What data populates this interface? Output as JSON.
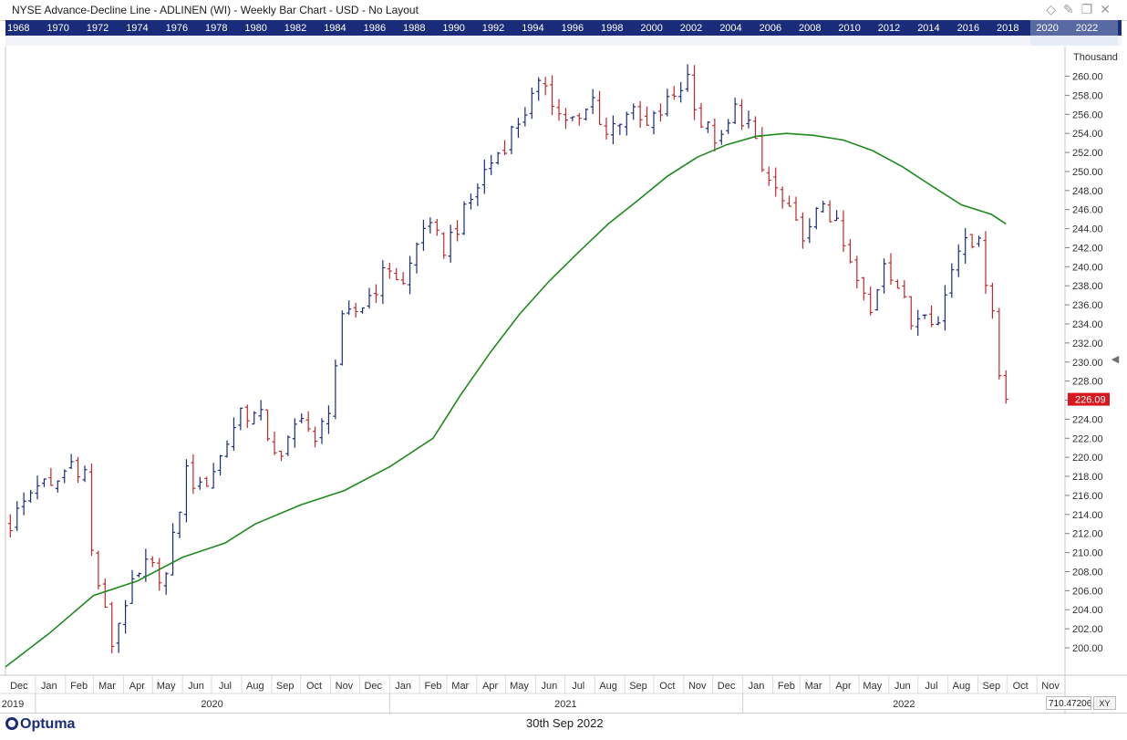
{
  "header": {
    "title": "NYSE  Advance-Decline Line - ADLINEN (WI) - Weekly Bar Chart - USD - No Layout",
    "icons": [
      "pencil-icon",
      "diamond-icon",
      "pin-icon",
      "restore-icon",
      "close-icon"
    ]
  },
  "overview_years": [
    "1968",
    "1970",
    "1972",
    "1974",
    "1976",
    "1978",
    "1980",
    "1982",
    "1984",
    "1986",
    "1988",
    "1990",
    "1992",
    "1994",
    "1996",
    "1998",
    "2000",
    "2002",
    "2004",
    "2006",
    "2008",
    "2010",
    "2012",
    "2014",
    "2016",
    "2018",
    "2020",
    "2022"
  ],
  "footer": {
    "brand": "Optuma",
    "date": "30th Sep 2022",
    "zoom_value": "710.47206",
    "xy_label": "XY"
  },
  "colors": {
    "up": "#1a2b7a",
    "down": "#c0282d",
    "ma": "#1e8a1e",
    "last_price_bg": "#d7191f"
  },
  "chart_data": {
    "type": "bar",
    "title": "NYSE  Advance-Decline Line - ADLINEN (WI) - Weekly Bar Chart - USD - No Layout",
    "y_unit": "Thousand",
    "ylim": [
      197.5,
      261.0
    ],
    "y_ticks": [
      "200.00",
      "202.00",
      "204.00",
      "206.00",
      "208.00",
      "210.00",
      "212.00",
      "214.00",
      "216.00",
      "218.00",
      "220.00",
      "222.00",
      "224.00",
      "226.00",
      "228.00",
      "230.00",
      "232.00",
      "234.00",
      "236.00",
      "238.00",
      "240.00",
      "242.00",
      "244.00",
      "246.00",
      "248.00",
      "250.00",
      "252.00",
      "254.00",
      "256.00",
      "258.00",
      "260.00"
    ],
    "last_price": "226.09",
    "month_labels": [
      "Dec",
      "Jan",
      "Feb",
      "Mar",
      "Apr",
      "May",
      "Jun",
      "Jul",
      "Aug",
      "Sep",
      "Oct",
      "Nov",
      "Dec",
      "Jan",
      "Feb",
      "Mar",
      "Apr",
      "May",
      "Jun",
      "Jul",
      "Aug",
      "Sep",
      "Oct",
      "Nov",
      "Dec",
      "Jan",
      "Feb",
      "Mar",
      "Apr",
      "May",
      "Jun",
      "Jul",
      "Aug",
      "Sep",
      "Oct",
      "Nov"
    ],
    "year_labels": [
      "2019",
      "2020",
      "2021",
      "2022"
    ],
    "x_start": "2019-12-01",
    "x_end": "2022-11-30",
    "anchors": [
      [
        "2019-12-06",
        213.0
      ],
      [
        "2020-01-03",
        217.5
      ],
      [
        "2020-01-17",
        216.5
      ],
      [
        "2020-02-07",
        219.5
      ],
      [
        "2020-02-21",
        218.5
      ],
      [
        "2020-02-28",
        210.0
      ],
      [
        "2020-03-13",
        203.5
      ],
      [
        "2020-03-20",
        200.5
      ],
      [
        "2020-04-03",
        205.0
      ],
      [
        "2020-04-24",
        208.5
      ],
      [
        "2020-05-15",
        207.5
      ],
      [
        "2020-06-05",
        218.5
      ],
      [
        "2020-06-19",
        216.5
      ],
      [
        "2020-07-10",
        220.0
      ],
      [
        "2020-07-31",
        225.0
      ],
      [
        "2020-08-21",
        224.0
      ],
      [
        "2020-09-11",
        219.5
      ],
      [
        "2020-10-02",
        225.0
      ],
      [
        "2020-10-16",
        221.0
      ],
      [
        "2020-10-30",
        225.5
      ],
      [
        "2020-11-13",
        234.0
      ],
      [
        "2020-12-04",
        236.0
      ],
      [
        "2021-01-01",
        240.0
      ],
      [
        "2021-01-15",
        238.0
      ],
      [
        "2021-02-05",
        244.5
      ],
      [
        "2021-02-26",
        242.0
      ],
      [
        "2021-03-19",
        245.5
      ],
      [
        "2021-04-09",
        250.0
      ],
      [
        "2021-04-30",
        253.0
      ],
      [
        "2021-05-21",
        256.5
      ],
      [
        "2021-06-11",
        259.5
      ],
      [
        "2021-06-25",
        256.0
      ],
      [
        "2021-07-16",
        255.0
      ],
      [
        "2021-07-30",
        257.5
      ],
      [
        "2021-08-13",
        254.0
      ],
      [
        "2021-09-03",
        256.5
      ],
      [
        "2021-09-24",
        254.5
      ],
      [
        "2021-10-22",
        258.0
      ],
      [
        "2021-11-05",
        260.0
      ],
      [
        "2021-11-19",
        255.0
      ],
      [
        "2021-12-10",
        253.0
      ],
      [
        "2021-12-24",
        256.5
      ],
      [
        "2022-01-07",
        255.0
      ],
      [
        "2022-01-21",
        250.0
      ],
      [
        "2022-02-04",
        248.0
      ],
      [
        "2022-02-25",
        244.0
      ],
      [
        "2022-03-11",
        243.5
      ],
      [
        "2022-03-25",
        247.0
      ],
      [
        "2022-04-08",
        244.0
      ],
      [
        "2022-04-22",
        240.0
      ],
      [
        "2022-05-13",
        235.0
      ],
      [
        "2022-05-27",
        241.0
      ],
      [
        "2022-06-10",
        238.0
      ],
      [
        "2022-06-24",
        234.0
      ],
      [
        "2022-07-08",
        236.0
      ],
      [
        "2022-07-22",
        234.0
      ],
      [
        "2022-08-05",
        240.0
      ],
      [
        "2022-08-19",
        244.0
      ],
      [
        "2022-09-02",
        242.0
      ],
      [
        "2022-09-16",
        236.0
      ],
      [
        "2022-09-23",
        228.5
      ],
      [
        "2022-09-30",
        226.09
      ]
    ],
    "ma_series": {
      "name": "",
      "points": [
        [
          "2019-12-01",
          198.0
        ],
        [
          "2020-01-15",
          201.5
        ],
        [
          "2020-03-01",
          205.5
        ],
        [
          "2020-04-15",
          207.0
        ],
        [
          "2020-06-01",
          209.5
        ],
        [
          "2020-07-15",
          211.0
        ],
        [
          "2020-08-15",
          213.0
        ],
        [
          "2020-10-01",
          215.0
        ],
        [
          "2020-11-15",
          216.5
        ],
        [
          "2021-01-01",
          219.0
        ],
        [
          "2021-02-15",
          222.0
        ],
        [
          "2021-03-15",
          226.5
        ],
        [
          "2021-04-15",
          231.0
        ],
        [
          "2021-05-15",
          235.0
        ],
        [
          "2021-06-15",
          238.5
        ],
        [
          "2021-07-15",
          241.5
        ],
        [
          "2021-08-15",
          244.5
        ],
        [
          "2021-09-15",
          247.0
        ],
        [
          "2021-10-15",
          249.5
        ],
        [
          "2021-11-15",
          251.5
        ],
        [
          "2021-12-15",
          252.8
        ],
        [
          "2022-01-15",
          253.7
        ],
        [
          "2022-02-15",
          254.0
        ],
        [
          "2022-03-15",
          253.8
        ],
        [
          "2022-04-15",
          253.3
        ],
        [
          "2022-05-15",
          252.2
        ],
        [
          "2022-06-15",
          250.5
        ],
        [
          "2022-07-15",
          248.5
        ],
        [
          "2022-08-15",
          246.5
        ],
        [
          "2022-09-15",
          245.5
        ],
        [
          "2022-09-30",
          244.5
        ]
      ]
    }
  }
}
